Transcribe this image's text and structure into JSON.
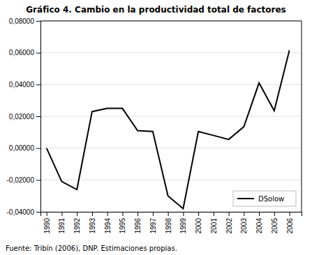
{
  "chart_data": {
    "type": "line",
    "title": "Gráfico 4. Cambio en la productividad total de factores",
    "annotations": [
      "Fuente: Tribín (2006), DNP. Estimaciones propias."
    ],
    "x": [
      1990,
      1991,
      1992,
      1993,
      1994,
      1995,
      1996,
      1997,
      1998,
      1999,
      2000,
      2001,
      2002,
      2003,
      2004,
      2005,
      2006
    ],
    "series": [
      {
        "name": "DSolow",
        "color": "#000000",
        "values": [
          0.0,
          -0.021,
          -0.026,
          0.023,
          0.025,
          0.025,
          0.011,
          0.0105,
          -0.03,
          -0.038,
          0.0105,
          0.008,
          0.0055,
          0.0135,
          0.041,
          0.0235,
          0.0615
        ]
      }
    ],
    "xlim": [
      1989.6,
      2006.8
    ],
    "xticks": [
      1990,
      1991,
      1992,
      1993,
      1994,
      1995,
      1996,
      1997,
      1998,
      1999,
      2000,
      2001,
      2002,
      2003,
      2004,
      2005,
      2006
    ],
    "ylim": [
      -0.04,
      0.08
    ],
    "yticks": [
      {
        "value": -0.04,
        "label": "-0,04000"
      },
      {
        "value": -0.02,
        "label": "-0,02000"
      },
      {
        "value": 0,
        "label": "0,00000"
      },
      {
        "value": 0.02,
        "label": "0,02000"
      },
      {
        "value": 0.04,
        "label": "0,04000"
      },
      {
        "value": 0.06,
        "label": "0,06000"
      },
      {
        "value": 0.08,
        "label": "0,08000"
      }
    ],
    "grid": true,
    "legend": "lower right"
  }
}
